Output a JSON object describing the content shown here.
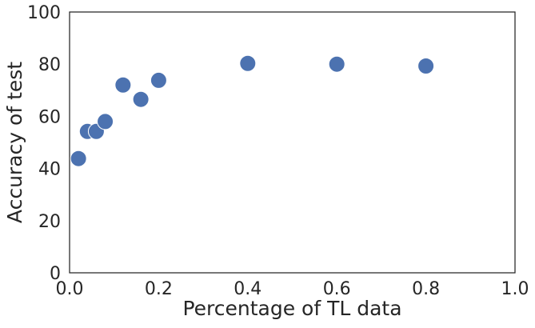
{
  "chart_data": {
    "type": "scatter",
    "title": "",
    "xlabel": "Percentage of TL data",
    "ylabel": "Accuracy of test",
    "xlim": [
      0.0,
      1.0
    ],
    "ylim": [
      0,
      100
    ],
    "xticks": [
      0.0,
      0.2,
      0.4,
      0.6,
      0.8,
      1.0
    ],
    "xtick_labels": [
      "0.0",
      "0.2",
      "0.4",
      "0.6",
      "0.8",
      "1.0"
    ],
    "yticks": [
      0,
      20,
      40,
      60,
      80,
      100
    ],
    "ytick_labels": [
      "0",
      "20",
      "40",
      "60",
      "80",
      "100"
    ],
    "grid": false,
    "legend": false,
    "marker_color": "#4c72b0",
    "series": [
      {
        "x": [
          0.02,
          0.04,
          0.06,
          0.08,
          0.12,
          0.16,
          0.2,
          0.4,
          0.6,
          0.8
        ],
        "y": [
          43.8,
          54.2,
          54.2,
          58.0,
          72.0,
          66.5,
          73.8,
          80.3,
          80.0,
          79.3
        ]
      }
    ]
  }
}
